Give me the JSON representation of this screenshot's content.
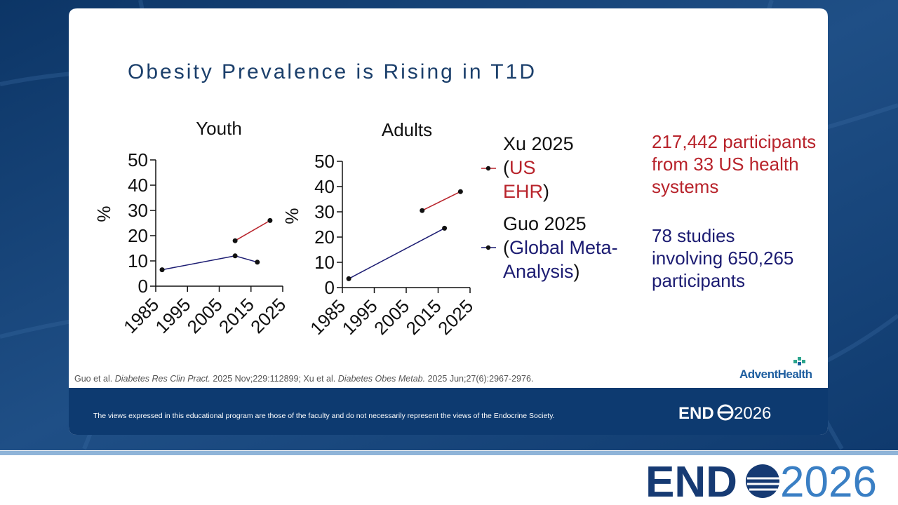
{
  "slide": {
    "title": "Obesity Prevalence is Rising in T1D",
    "us_stats": "217,442 participants from 33 US health systems",
    "global_stats": "78 studies involving 650,265 participants",
    "citation": [
      "Guo et al. ",
      "Diabetes Res Clin Pract.",
      " 2025 Nov;229:112899; Xu et al. ",
      "Diabetes Obes Metab.",
      " 2025 Jun;27(6):2967-2976."
    ],
    "brand": "AdventHealth",
    "disclaimer": "The views expressed in this educational program are those of the faculty and do not necessarily represent the views of the Endocrine Society.",
    "logo": {
      "left": "END",
      "right": "2026"
    }
  },
  "chart_data": [
    {
      "type": "line",
      "title": "Youth",
      "y_label": "%",
      "xlim": [
        1985,
        2025
      ],
      "xticks": [
        1985,
        1995,
        2005,
        2015,
        2025
      ],
      "ylim": [
        0,
        50
      ],
      "yticks": [
        0,
        10,
        20,
        30,
        40,
        50
      ],
      "series": [
        {
          "color": "#b8232b",
          "x": [
            2010,
            2021
          ],
          "values": [
            18,
            26
          ]
        },
        {
          "color": "#1c1c72",
          "x": [
            1987,
            2010,
            2017
          ],
          "values": [
            6.5,
            12,
            9.5
          ]
        }
      ]
    },
    {
      "type": "line",
      "title": "Adults",
      "y_label": "%",
      "xlim": [
        1985,
        2025
      ],
      "xticks": [
        1985,
        1995,
        2005,
        2015,
        2025
      ],
      "ylim": [
        0,
        50
      ],
      "yticks": [
        0,
        10,
        20,
        30,
        40,
        50
      ],
      "series": [
        {
          "name": "Xu 2025",
          "note": [
            "(",
            "US EHR",
            ")"
          ],
          "color": "#b8232b",
          "x": [
            2010,
            2022
          ],
          "values": [
            30.5,
            38
          ]
        },
        {
          "name": "Guo 2025",
          "note": [
            "(",
            "Global Meta-Analysis",
            ")"
          ],
          "color": "#1c1c72",
          "x": [
            1987,
            2017
          ],
          "values": [
            3.5,
            23.5
          ]
        }
      ]
    }
  ]
}
